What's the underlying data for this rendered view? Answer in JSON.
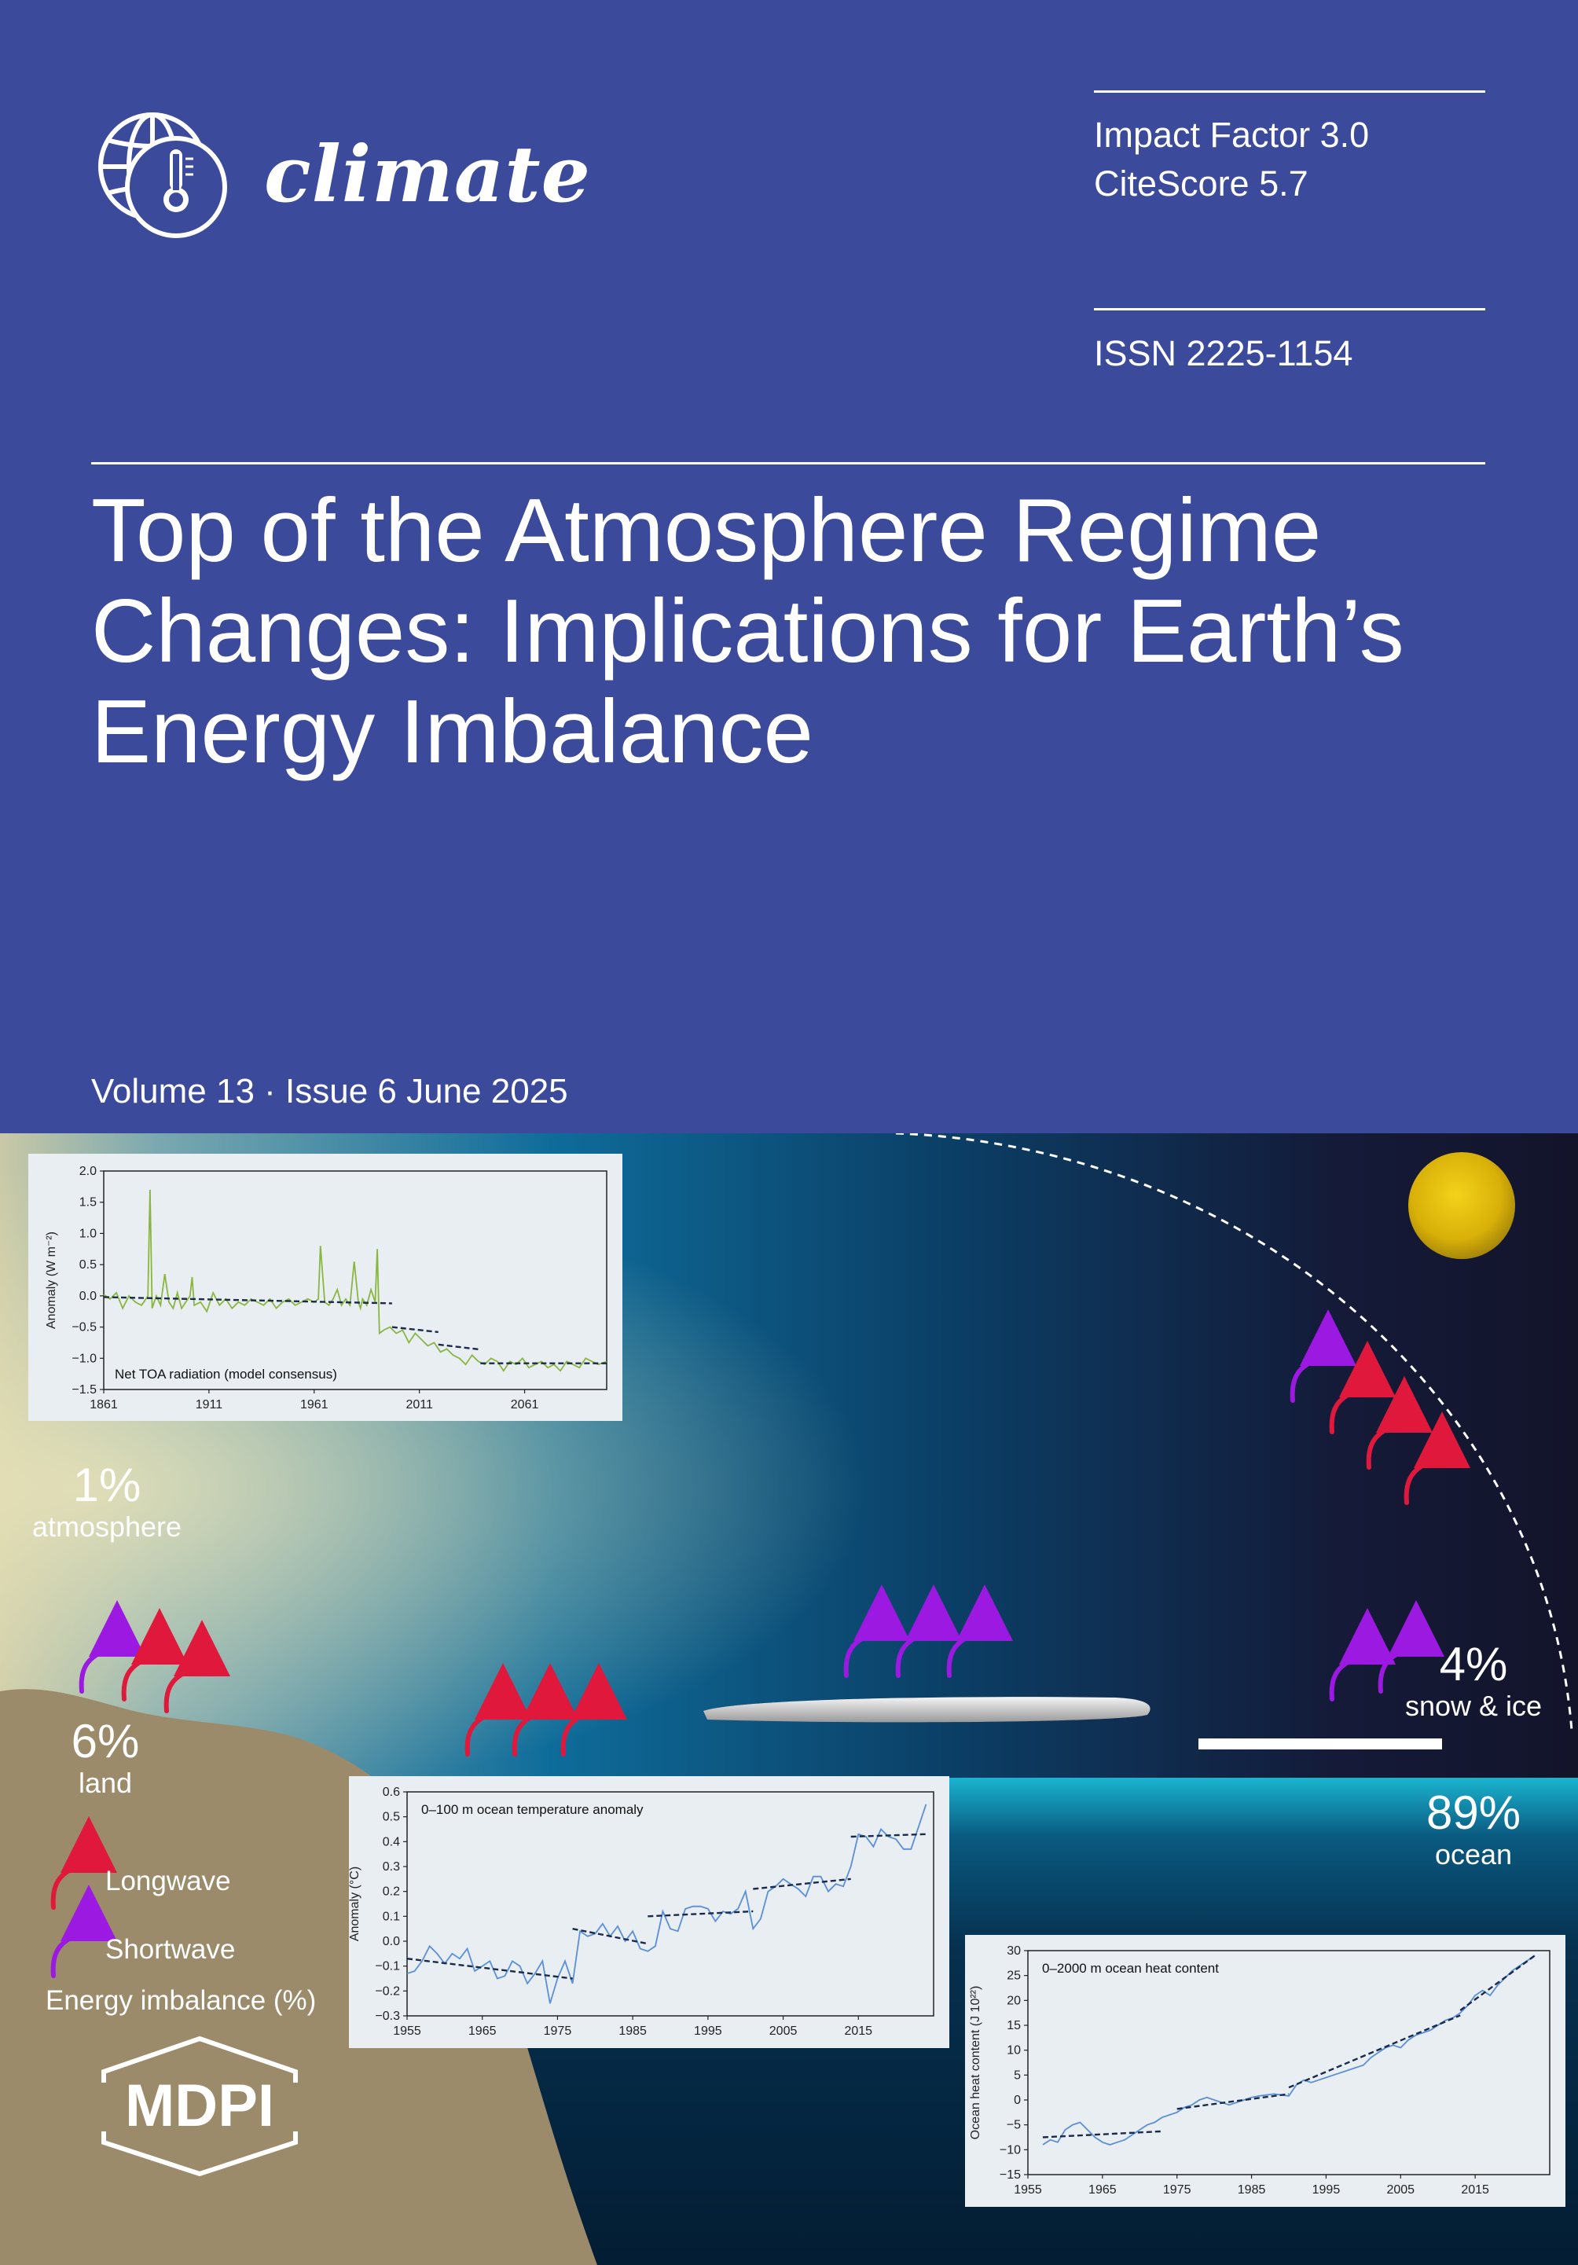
{
  "journal": {
    "name": "climate",
    "impact_factor": "Impact Factor 3.0",
    "citescore": "CiteScore 5.7",
    "issn": "ISSN 2225-1154",
    "logo_icon": "globe-thermometer-icon"
  },
  "article": {
    "title_lines": [
      "Top of the Atmosphere Regime",
      "Changes: Implications for Earth’s",
      "Energy Imbalance"
    ]
  },
  "issue": {
    "line": "Volume 13 · Issue 6 June 2025"
  },
  "diagram": {
    "atmosphere": {
      "pct": "1%",
      "label": "atmosphere"
    },
    "land": {
      "pct": "6%",
      "label": "land"
    },
    "snow_ice": {
      "pct": "4%",
      "label": "snow & ice"
    },
    "ocean": {
      "pct": "89%",
      "label": "ocean"
    },
    "legend": {
      "longwave": "Longwave",
      "shortwave": "Shortwave",
      "caption": "Energy imbalance (%)",
      "longwave_color": "#e0183c",
      "shortwave_color": "#9b19e0"
    }
  },
  "publisher": {
    "name": "MDPI"
  },
  "chart_data": [
    {
      "type": "line",
      "annotation": "Net TOA radiation (model consensus)",
      "ylabel": "Anomaly (W m⁻²)",
      "xlabel": "",
      "xlim": [
        1861,
        2100
      ],
      "ylim": [
        -1.5,
        2.0
      ],
      "x_ticks": [
        "1861",
        "1911",
        "1961",
        "2011",
        "2061"
      ],
      "y_ticks": [
        "2.0",
        "1.5",
        "1.0",
        "0.5",
        "0.0",
        "−0.5",
        "−1.0",
        "−1.5"
      ],
      "color": "#8ab640",
      "series": [
        {
          "x": [
            1861,
            1864,
            1867,
            1870,
            1873,
            1876,
            1879,
            1882,
            1883,
            1884,
            1886,
            1888,
            1890,
            1892,
            1894,
            1896,
            1898,
            1900,
            1902,
            1903,
            1904,
            1907,
            1910,
            1913,
            1916,
            1919,
            1922,
            1925,
            1928,
            1931,
            1934,
            1937,
            1940,
            1943,
            1946,
            1949,
            1952,
            1955,
            1958,
            1961,
            1963,
            1964,
            1966,
            1968,
            1970,
            1972,
            1974,
            1976,
            1978,
            1980,
            1982,
            1983,
            1984,
            1986,
            1988,
            1990,
            1991,
            1992,
            1994,
            1997,
            2000,
            2003,
            2006,
            2009,
            2012,
            2015,
            2018,
            2021,
            2024,
            2027,
            2030,
            2033,
            2036,
            2039,
            2042,
            2045,
            2048,
            2051,
            2054,
            2057,
            2060,
            2063,
            2066,
            2069,
            2072,
            2075,
            2078,
            2081,
            2084,
            2087,
            2090,
            2093,
            2096,
            2100
          ],
          "y": [
            0.02,
            -0.05,
            0.05,
            -0.2,
            0.0,
            -0.1,
            -0.15,
            0.0,
            1.7,
            -0.2,
            0.0,
            -0.15,
            0.35,
            -0.1,
            -0.2,
            0.05,
            -0.2,
            -0.1,
            0.0,
            0.3,
            -0.15,
            -0.1,
            -0.25,
            0.05,
            -0.15,
            -0.05,
            -0.2,
            -0.1,
            -0.15,
            -0.05,
            -0.1,
            -0.15,
            -0.05,
            -0.2,
            -0.1,
            -0.05,
            -0.15,
            -0.1,
            -0.05,
            -0.1,
            -0.05,
            0.8,
            -0.1,
            -0.15,
            -0.05,
            0.1,
            -0.15,
            -0.05,
            -0.15,
            0.55,
            -0.1,
            -0.2,
            -0.05,
            -0.15,
            0.1,
            -0.1,
            0.75,
            -0.6,
            -0.55,
            -0.5,
            -0.6,
            -0.55,
            -0.75,
            -0.6,
            -0.7,
            -0.8,
            -0.75,
            -0.9,
            -0.85,
            -0.95,
            -1.0,
            -1.1,
            -0.95,
            -1.05,
            -1.1,
            -1.0,
            -1.05,
            -1.2,
            -1.05,
            -1.1,
            -1.0,
            -1.15,
            -1.1,
            -1.05,
            -1.15,
            -1.1,
            -1.2,
            -1.05,
            -1.1,
            -1.15,
            -1.0,
            -1.05,
            -1.1,
            -1.05
          ]
        }
      ],
      "trend_segments": [
        {
          "x": [
            1861,
            1998
          ],
          "y": [
            -0.02,
            -0.12
          ]
        },
        {
          "x": [
            1998,
            2020
          ],
          "y": [
            -0.5,
            -0.58
          ]
        },
        {
          "x": [
            2020,
            2040
          ],
          "y": [
            -0.78,
            -0.86
          ]
        },
        {
          "x": [
            2040,
            2100
          ],
          "y": [
            -1.08,
            -1.08
          ]
        }
      ]
    },
    {
      "type": "line",
      "annotation": "0–100 m ocean temperature anomaly",
      "ylabel": "Anomaly (°C)",
      "xlabel": "",
      "xlim": [
        1955,
        2025
      ],
      "ylim": [
        -0.3,
        0.6
      ],
      "x_ticks": [
        "1955",
        "1965",
        "1975",
        "1985",
        "1995",
        "2005",
        "2015"
      ],
      "y_ticks": [
        "0.6",
        "0.5",
        "0.4",
        "0.3",
        "0.2",
        "0.1",
        "0.0",
        "−0.1",
        "−0.2",
        "−0.3"
      ],
      "color": "#5a8fd8",
      "series": [
        {
          "x": [
            1955,
            1956,
            1957,
            1958,
            1959,
            1960,
            1961,
            1962,
            1963,
            1964,
            1965,
            1966,
            1967,
            1968,
            1969,
            1970,
            1971,
            1972,
            1973,
            1974,
            1975,
            1976,
            1977,
            1978,
            1979,
            1980,
            1981,
            1982,
            1983,
            1984,
            1985,
            1986,
            1987,
            1988,
            1989,
            1990,
            1991,
            1992,
            1993,
            1994,
            1995,
            1996,
            1997,
            1998,
            1999,
            2000,
            2001,
            2002,
            2003,
            2004,
            2005,
            2006,
            2007,
            2008,
            2009,
            2010,
            2011,
            2012,
            2013,
            2014,
            2015,
            2016,
            2017,
            2018,
            2019,
            2020,
            2021,
            2022,
            2023,
            2024
          ],
          "y": [
            -0.13,
            -0.12,
            -0.08,
            -0.02,
            -0.05,
            -0.09,
            -0.05,
            -0.07,
            -0.03,
            -0.12,
            -0.1,
            -0.08,
            -0.15,
            -0.14,
            -0.08,
            -0.1,
            -0.17,
            -0.13,
            -0.08,
            -0.25,
            -0.15,
            -0.08,
            -0.17,
            0.04,
            0.02,
            0.03,
            0.07,
            0.02,
            0.06,
            0.0,
            0.04,
            -0.03,
            -0.04,
            -0.02,
            0.12,
            0.05,
            0.04,
            0.13,
            0.14,
            0.14,
            0.13,
            0.08,
            0.12,
            0.11,
            0.13,
            0.2,
            0.05,
            0.09,
            0.2,
            0.22,
            0.25,
            0.23,
            0.21,
            0.18,
            0.26,
            0.26,
            0.2,
            0.23,
            0.22,
            0.3,
            0.43,
            0.42,
            0.38,
            0.45,
            0.42,
            0.41,
            0.37,
            0.37,
            0.46,
            0.55
          ]
        }
      ],
      "trend_segments": [
        {
          "x": [
            1955,
            1977
          ],
          "y": [
            -0.07,
            -0.15
          ]
        },
        {
          "x": [
            1977,
            1987
          ],
          "y": [
            0.05,
            -0.01
          ]
        },
        {
          "x": [
            1987,
            2001
          ],
          "y": [
            0.1,
            0.12
          ]
        },
        {
          "x": [
            2001,
            2014
          ],
          "y": [
            0.21,
            0.25
          ]
        },
        {
          "x": [
            2014,
            2024
          ],
          "y": [
            0.42,
            0.43
          ]
        }
      ]
    },
    {
      "type": "line",
      "annotation": "0–2000 m ocean heat content",
      "ylabel": "Ocean heat content (J 10²²)",
      "xlabel": "",
      "xlim": [
        1955,
        2025
      ],
      "ylim": [
        -15,
        30
      ],
      "x_ticks": [
        "1955",
        "1965",
        "1975",
        "1985",
        "1995",
        "2005",
        "2015"
      ],
      "y_ticks": [
        "30",
        "25",
        "20",
        "15",
        "10",
        "5",
        "0",
        "−5",
        "−10",
        "−15"
      ],
      "color": "#5a8fd8",
      "series": [
        {
          "x": [
            1957,
            1958,
            1959,
            1960,
            1961,
            1962,
            1963,
            1964,
            1965,
            1966,
            1967,
            1968,
            1969,
            1970,
            1971,
            1972,
            1973,
            1974,
            1975,
            1976,
            1977,
            1978,
            1979,
            1980,
            1981,
            1982,
            1983,
            1984,
            1985,
            1986,
            1987,
            1988,
            1989,
            1990,
            1991,
            1992,
            1993,
            1994,
            1995,
            1996,
            1997,
            1998,
            1999,
            2000,
            2001,
            2002,
            2003,
            2004,
            2005,
            2006,
            2007,
            2008,
            2009,
            2010,
            2011,
            2012,
            2013,
            2014,
            2015,
            2016,
            2017,
            2018,
            2019,
            2020,
            2021,
            2022,
            2023
          ],
          "y": [
            -9,
            -8,
            -8.5,
            -6,
            -5,
            -4.5,
            -6,
            -7.5,
            -8.5,
            -9,
            -8.5,
            -8,
            -7,
            -6,
            -5,
            -4.5,
            -3.5,
            -3,
            -2.5,
            -1.5,
            -1,
            0,
            0.5,
            0,
            -0.5,
            -1,
            -0.5,
            0,
            0.5,
            0.8,
            1,
            1.2,
            1,
            0.8,
            3,
            4,
            3.5,
            4,
            4.5,
            5,
            5.5,
            6,
            6.5,
            7,
            8.5,
            9.5,
            10.5,
            11,
            10.5,
            12,
            13,
            13.5,
            14,
            15,
            16,
            16.5,
            17.5,
            19,
            21,
            22,
            21,
            23,
            24.5,
            26,
            27,
            28,
            29
          ]
        }
      ],
      "trend_segments": [
        {
          "x": [
            1957,
            1973
          ],
          "y": [
            -7.5,
            -6.3
          ]
        },
        {
          "x": [
            1975,
            1990
          ],
          "y": [
            -1.8,
            1.2
          ]
        },
        {
          "x": [
            1990,
            2013
          ],
          "y": [
            2.5,
            17
          ]
        },
        {
          "x": [
            2013,
            2023
          ],
          "y": [
            18,
            29
          ]
        }
      ]
    }
  ]
}
